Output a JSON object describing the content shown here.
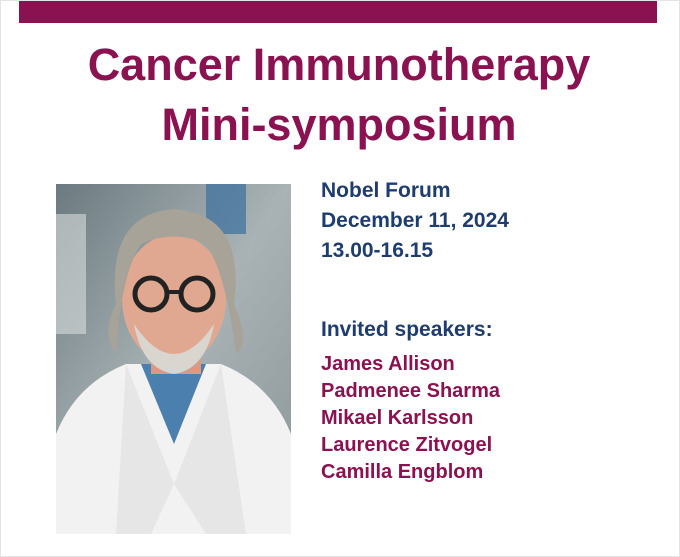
{
  "header": {
    "title_line1": "Cancer Immunotherapy",
    "title_line2": "Mini-symposium"
  },
  "event": {
    "venue": "Nobel Forum",
    "date": "December 11, 2024",
    "time": "13.00-16.15"
  },
  "speakers": {
    "heading": "Invited speakers:",
    "names": [
      "James Allison",
      "Padmenee Sharma",
      "Mikael Karlsson",
      "Laurence Zitvogel",
      "Camilla Engblom"
    ]
  }
}
